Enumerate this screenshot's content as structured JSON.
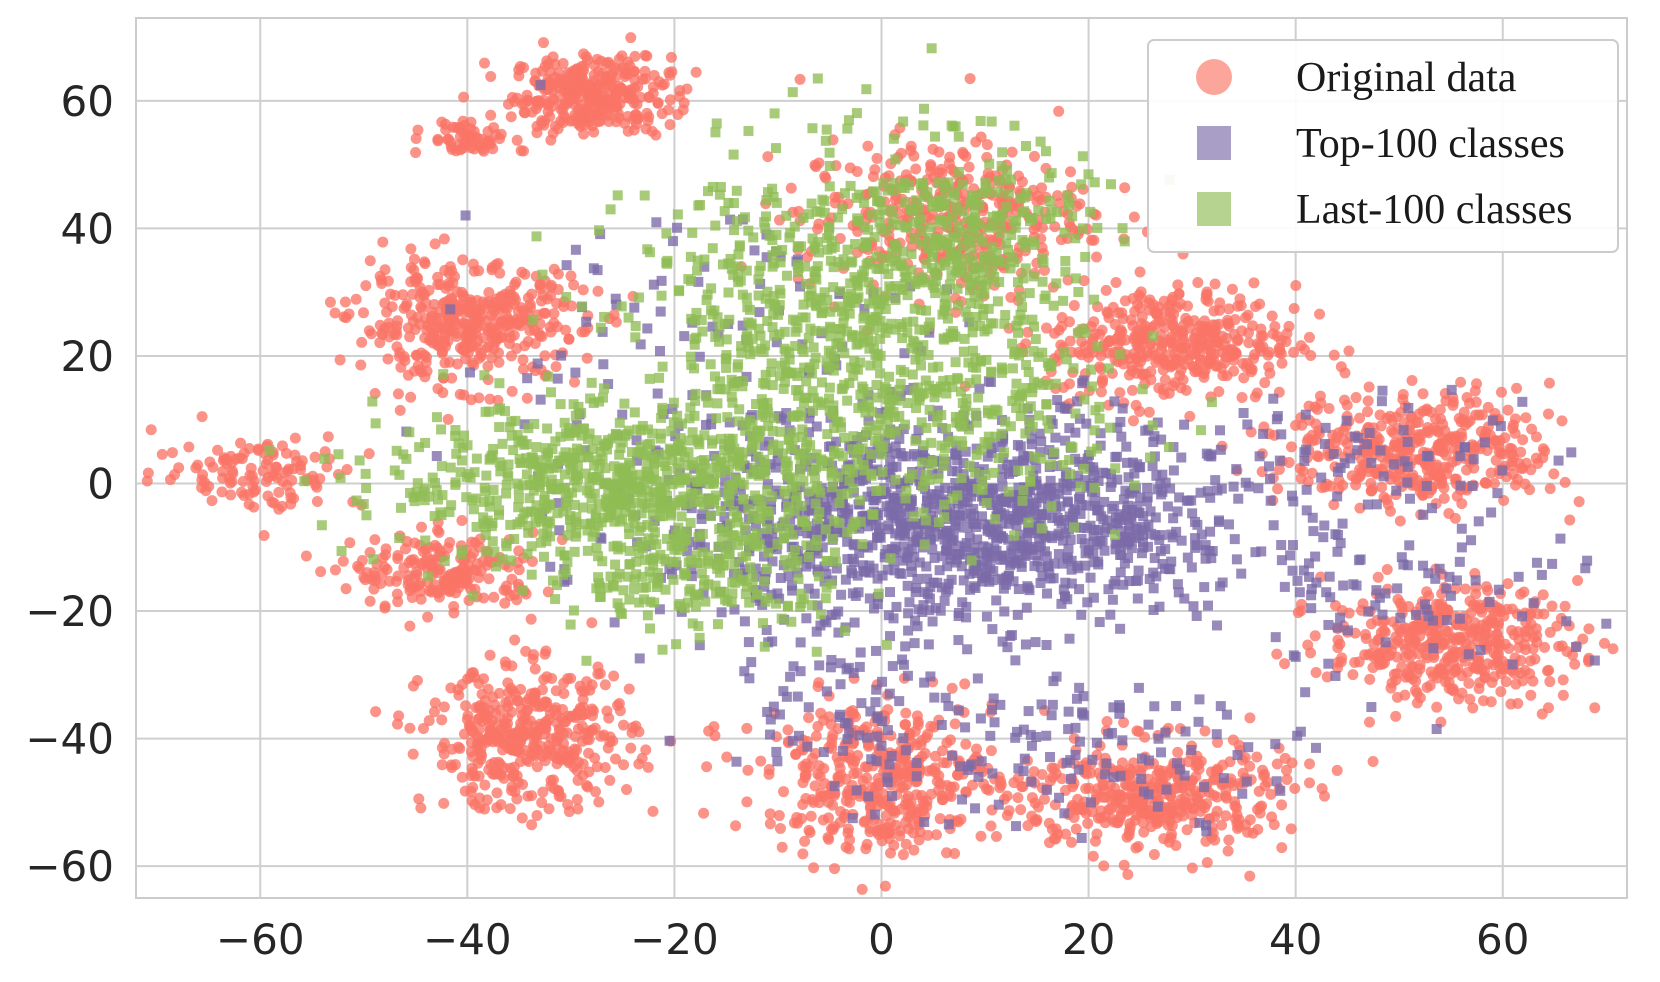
{
  "chart_data": {
    "type": "scatter",
    "title": "",
    "xlabel": "",
    "ylabel": "",
    "xlim": [
      -72,
      72
    ],
    "ylim": [
      -65,
      73
    ],
    "xticks": [
      -60,
      -40,
      -20,
      0,
      20,
      40,
      60
    ],
    "yticks": [
      -60,
      -40,
      -20,
      0,
      20,
      40,
      60
    ],
    "xtick_labels": [
      "−60",
      "−40",
      "−20",
      "0",
      "20",
      "40",
      "60"
    ],
    "ytick_labels": [
      "−60",
      "−40",
      "−20",
      "0",
      "20",
      "40",
      "60"
    ],
    "grid": true,
    "legend_position": "top-right",
    "series": [
      {
        "name": "Original data",
        "marker": "circle",
        "color": "#fa7566",
        "clusters": [
          {
            "cx": -28,
            "cy": 61,
            "sx": 3.8,
            "sy": 3.0,
            "n": 330
          },
          {
            "cx": -40,
            "cy": 54,
            "sx": 2.0,
            "sy": 1.6,
            "n": 60
          },
          {
            "cx": -40,
            "cy": 25,
            "sx": 5.5,
            "sy": 4.5,
            "n": 420
          },
          {
            "cx": -60,
            "cy": 2,
            "sx": 5.0,
            "sy": 3.0,
            "n": 120
          },
          {
            "cx": -42,
            "cy": -14,
            "sx": 4.5,
            "sy": 3.0,
            "n": 200
          },
          {
            "cx": -34,
            "cy": -40,
            "sx": 5.0,
            "sy": 5.5,
            "n": 420
          },
          {
            "cx": 0,
            "cy": -46,
            "sx": 5.5,
            "sy": 6.0,
            "n": 420
          },
          {
            "cx": 26,
            "cy": -49,
            "sx": 6.5,
            "sy": 4.5,
            "n": 420
          },
          {
            "cx": 55,
            "cy": -25,
            "sx": 6.0,
            "sy": 4.5,
            "n": 420
          },
          {
            "cx": 52,
            "cy": 5,
            "sx": 6.5,
            "sy": 4.5,
            "n": 420
          },
          {
            "cx": 28,
            "cy": 22,
            "sx": 6.0,
            "sy": 4.5,
            "n": 420
          },
          {
            "cx": 6,
            "cy": 42,
            "sx": 7.0,
            "sy": 6.0,
            "n": 380
          }
        ]
      },
      {
        "name": "Top-100 classes",
        "marker": "square",
        "color": "#7b6aa8",
        "clusters": [
          {
            "cx": 8,
            "cy": -6,
            "sx": 14.0,
            "sy": 8.0,
            "n": 1300
          },
          {
            "cx": 0,
            "cy": -35,
            "sx": 8.0,
            "sy": 8.0,
            "n": 120
          },
          {
            "cx": 25,
            "cy": -42,
            "sx": 9.0,
            "sy": 5.0,
            "n": 90
          },
          {
            "cx": 52,
            "cy": -15,
            "sx": 8.0,
            "sy": 8.0,
            "n": 80
          },
          {
            "cx": 48,
            "cy": 5,
            "sx": 9.0,
            "sy": 5.0,
            "n": 60
          },
          {
            "cx": -18,
            "cy": 20,
            "sx": 12.0,
            "sy": 14.0,
            "n": 120
          }
        ]
      },
      {
        "name": "Last-100 classes",
        "marker": "square",
        "color": "#8fbc55",
        "clusters": [
          {
            "cx": -26,
            "cy": 0,
            "sx": 11.0,
            "sy": 6.0,
            "n": 700
          },
          {
            "cx": -6,
            "cy": 22,
            "sx": 9.0,
            "sy": 14.0,
            "n": 700
          },
          {
            "cx": 8,
            "cy": 38,
            "sx": 6.0,
            "sy": 8.0,
            "n": 300
          },
          {
            "cx": -18,
            "cy": -14,
            "sx": 8.0,
            "sy": 5.0,
            "n": 200
          },
          {
            "cx": 10,
            "cy": 10,
            "sx": 8.0,
            "sy": 8.0,
            "n": 200
          }
        ]
      }
    ]
  }
}
